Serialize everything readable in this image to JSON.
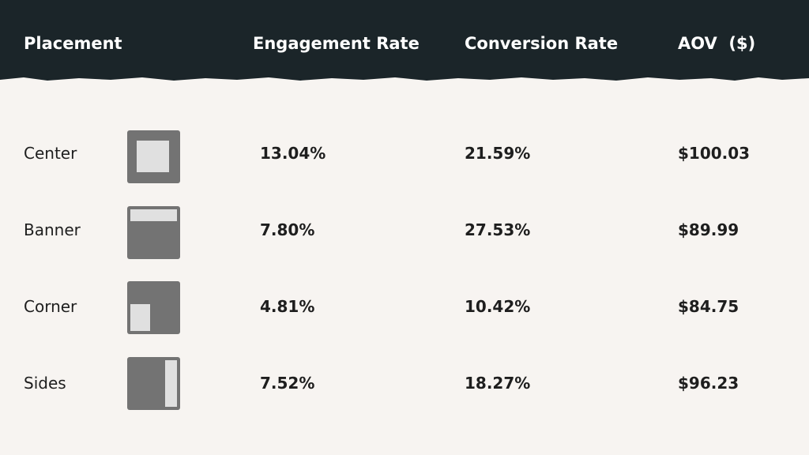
{
  "table": {
    "columns": [
      "Placement",
      "Engagement Rate",
      "Conversion Rate",
      "AOV  ($)"
    ],
    "rows": [
      [
        "Center",
        "13.04%",
        "21.59%",
        "$100.03"
      ],
      [
        "Banner",
        "7.80%",
        "27.53%",
        "$89.99"
      ],
      [
        "Corner",
        "4.81%",
        "10.42%",
        "$84.75"
      ],
      [
        "Sides",
        "7.52%",
        "18.27%",
        "$96.23"
      ]
    ]
  }
}
